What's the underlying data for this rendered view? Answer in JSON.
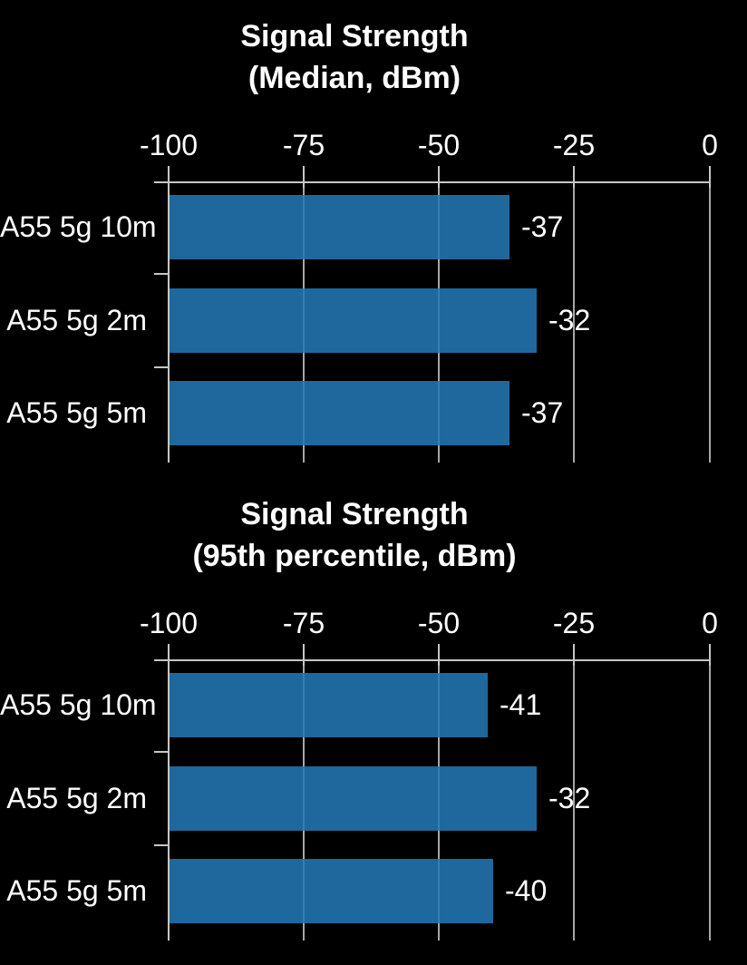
{
  "colors": {
    "background": "#000000",
    "bar": "#2277b4",
    "grid": "#a6a6a6",
    "axis": "#c6c6c6",
    "text": "#ffffff"
  },
  "chart_data": [
    {
      "type": "bar",
      "orientation": "horizontal",
      "title": "Signal Strength (Median, dBm)",
      "title_line1": "Signal Strength",
      "title_line2": "(Median, dBm)",
      "categories": [
        "A55 5g 10m",
        "A55 5g 2m",
        "A55 5g 5m"
      ],
      "values": [
        -37,
        -32,
        -37
      ],
      "value_labels": [
        "-37",
        "-32",
        "-37"
      ],
      "bar_base": -100,
      "xlim": [
        -100,
        0
      ],
      "xticks": [
        -100,
        -75,
        -50,
        -25,
        0
      ],
      "xtick_labels": [
        "-100",
        "-75",
        "-50",
        "-25",
        "0"
      ],
      "grid": true,
      "tick_labels_position": "top"
    },
    {
      "type": "bar",
      "orientation": "horizontal",
      "title": "Signal Strength (95th percentile, dBm)",
      "title_line1": "Signal Strength",
      "title_line2": "(95th percentile, dBm)",
      "categories": [
        "A55 5g 10m",
        "A55 5g 2m",
        "A55 5g 5m"
      ],
      "values": [
        -41,
        -32,
        -40
      ],
      "value_labels": [
        "-41",
        "-32",
        "-40"
      ],
      "bar_base": -100,
      "xlim": [
        -100,
        0
      ],
      "xticks": [
        -100,
        -75,
        -50,
        -25,
        0
      ],
      "xtick_labels": [
        "-100",
        "-75",
        "-50",
        "-25",
        "0"
      ],
      "grid": true,
      "tick_labels_position": "top"
    }
  ]
}
